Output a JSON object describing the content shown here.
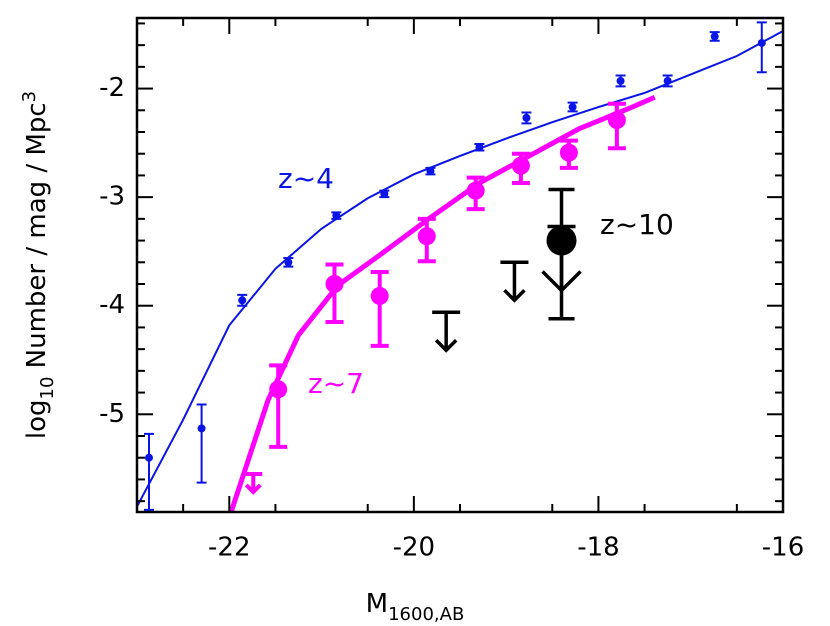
{
  "chart_data": {
    "type": "scatter",
    "xlabel": {
      "text": "M",
      "sub": "1600,AB"
    },
    "ylabel": {
      "text": "log",
      "sub": "10",
      "rest": " Number  /  mag  /  Mpc",
      "sup": "3"
    },
    "xlim": [
      -23,
      -16
    ],
    "ylim": [
      -5.9,
      -1.35
    ],
    "xticks": [
      -22,
      -20,
      -18,
      -16
    ],
    "yticks": [
      -5,
      -4,
      -3,
      -2
    ],
    "xminor": [
      -22.5,
      -21.5,
      -20.5,
      -19.5,
      -18.5,
      -17.5,
      -16.5
    ],
    "yminor": [
      -5.8,
      -5.6,
      -5.4,
      -5.2,
      -4.8,
      -4.6,
      -4.4,
      -4.2,
      -3.8,
      -3.6,
      -3.4,
      -3.2,
      -2.8,
      -2.6,
      -2.4,
      -2.2,
      -1.8,
      -1.6,
      -1.4
    ],
    "series": [
      {
        "name": "z~4",
        "color": "#0a14e6",
        "x": [
          -22.87,
          -22.3,
          -21.86,
          -21.36,
          -20.84,
          -20.32,
          -19.82,
          -19.29,
          -18.78,
          -18.28,
          -17.76,
          -17.25,
          -16.74,
          -16.23
        ],
        "values": [
          -5.4,
          -5.13,
          -3.95,
          -3.6,
          -3.17,
          -2.97,
          -2.76,
          -2.54,
          -2.27,
          -2.17,
          -1.93,
          -1.93,
          -1.52,
          -1.58
        ],
        "err_plus": [
          0.22,
          0.22,
          0.05,
          0.04,
          0.03,
          0.03,
          0.03,
          0.03,
          0.05,
          0.04,
          0.05,
          0.05,
          0.04,
          0.19
        ],
        "err_minus": [
          0.48,
          0.5,
          0.05,
          0.04,
          0.03,
          0.03,
          0.03,
          0.03,
          0.05,
          0.04,
          0.05,
          0.05,
          0.04,
          0.27
        ],
        "fit": {
          "x": [
            -23.0,
            -22.5,
            -22.0,
            -21.5,
            -21.0,
            -20.5,
            -20.0,
            -19.5,
            -19.0,
            -18.5,
            -18.0,
            -17.5,
            -17.0,
            -16.5,
            -16.0
          ],
          "values": [
            -5.85,
            -5.05,
            -4.18,
            -3.66,
            -3.29,
            -3.01,
            -2.79,
            -2.62,
            -2.46,
            -2.31,
            -2.17,
            -2.04,
            -1.87,
            -1.7,
            -1.47
          ]
        }
      },
      {
        "name": "z~7",
        "color": "#ff00ff",
        "x": [
          -21.47,
          -20.86,
          -20.37,
          -19.86,
          -19.33,
          -18.84,
          -18.32,
          -17.8
        ],
        "values": [
          -4.77,
          -3.8,
          -3.91,
          -3.36,
          -2.94,
          -2.71,
          -2.59,
          -2.29
        ],
        "err_plus": [
          0.22,
          0.18,
          0.22,
          0.16,
          0.12,
          0.11,
          0.11,
          0.15
        ],
        "err_minus": [
          0.53,
          0.35,
          0.46,
          0.23,
          0.17,
          0.16,
          0.14,
          0.26
        ],
        "upper_limits": {
          "x": [
            -21.74
          ],
          "values": [
            -5.55
          ]
        },
        "fit": {
          "x": [
            -21.98,
            -21.58,
            -21.25,
            -20.82,
            -20.38,
            -19.84,
            -19.29,
            -18.75,
            -18.21,
            -17.66,
            -17.39
          ],
          "values": [
            -5.9,
            -4.87,
            -4.27,
            -3.81,
            -3.54,
            -3.2,
            -2.87,
            -2.62,
            -2.37,
            -2.18,
            -2.08
          ]
        }
      },
      {
        "name": "z~10",
        "color": "#000000",
        "x": [
          -18.4
        ],
        "values": [
          -3.4
        ],
        "err_plus": [
          0.47
        ],
        "err_minus": [
          0.72
        ],
        "upper_limits": {
          "x": [
            -19.65,
            -18.91,
            -18.4
          ],
          "values": [
            -4.06,
            -3.6,
            -3.27
          ]
        }
      }
    ]
  }
}
